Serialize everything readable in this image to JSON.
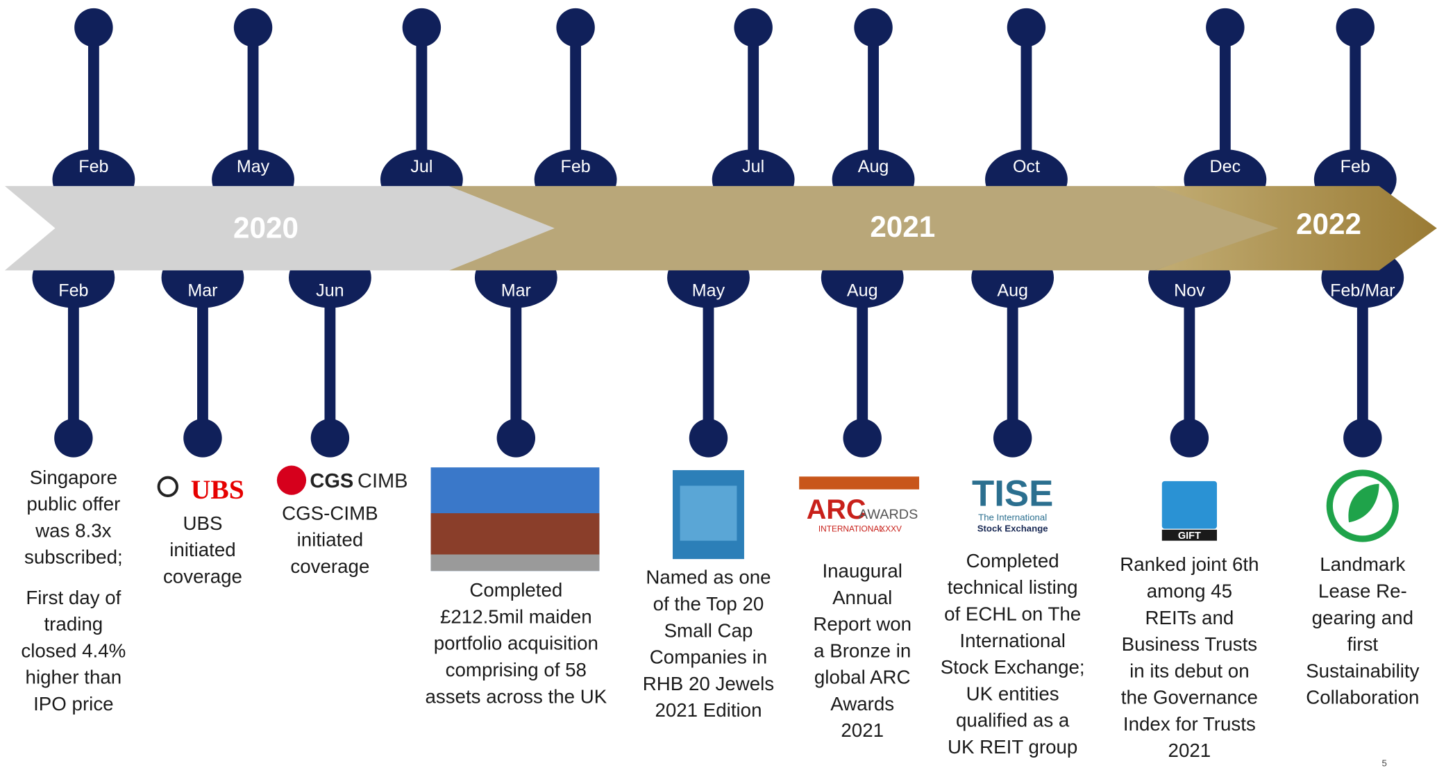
{
  "years": [
    "2020",
    "2021",
    "2022"
  ],
  "top_months": [
    "Feb",
    "May",
    "Jul",
    "Feb",
    "Jul",
    "Aug",
    "Oct",
    "Dec",
    "Feb"
  ],
  "bottom_events": [
    {
      "month": "Feb",
      "paragraphs": [
        [
          "Singapore",
          "public offer",
          "was 8.3x",
          "subscribed;"
        ],
        [
          "First day of",
          "trading",
          "closed 4.4%",
          "higher than",
          "IPO price"
        ]
      ]
    },
    {
      "month": "Mar",
      "logo": [
        "UBS"
      ],
      "paragraphs": [
        [
          "UBS",
          "initiated",
          "coverage"
        ]
      ]
    },
    {
      "month": "Jun",
      "logo": [
        "CGS",
        "CIMB"
      ],
      "paragraphs": [
        [
          "CGS-CIMB",
          "initiated",
          "coverage"
        ]
      ]
    },
    {
      "month": "Mar",
      "paragraphs": [
        [
          "Completed",
          "£212.5mil maiden",
          "portfolio  acquisition",
          "comprising of 58",
          "assets across the UK"
        ]
      ]
    },
    {
      "month": "May",
      "paragraphs": [
        [
          "Named as one",
          "of the Top 20",
          "Small Cap",
          "Companies in",
          "RHB 20 Jewels",
          "2021 Edition"
        ]
      ]
    },
    {
      "month": "Aug",
      "logo": [
        "ARC",
        "AWARDS",
        "INTERNATIONAL",
        "XXXV"
      ],
      "paragraphs": [
        [
          "Inaugural",
          "Annual",
          "Report won",
          "a Bronze in",
          "global ARC",
          "Awards",
          "2021"
        ]
      ]
    },
    {
      "month": "Aug",
      "logo": [
        "TISE",
        "The International",
        "Stock Exchange"
      ],
      "paragraphs": [
        [
          "Completed",
          "technical listing",
          "of ECHL on The",
          "International",
          "Stock Exchange;",
          "UK entities",
          "qualified as a",
          "UK REIT group"
        ]
      ]
    },
    {
      "month": "Nov",
      "logo": [
        "GIFT"
      ],
      "paragraphs": [
        [
          "Ranked joint 6th",
          "among 45",
          "REITs and",
          "Business Trusts",
          "in its debut on",
          "the Governance",
          "Index for Trusts",
          "2021"
        ]
      ]
    },
    {
      "month": "Feb/Mar",
      "paragraphs": [
        [
          "Landmark",
          "Lease Re-",
          "gearing and",
          "first",
          "Sustainability",
          "Collaboration"
        ]
      ]
    }
  ],
  "page_number": "5"
}
